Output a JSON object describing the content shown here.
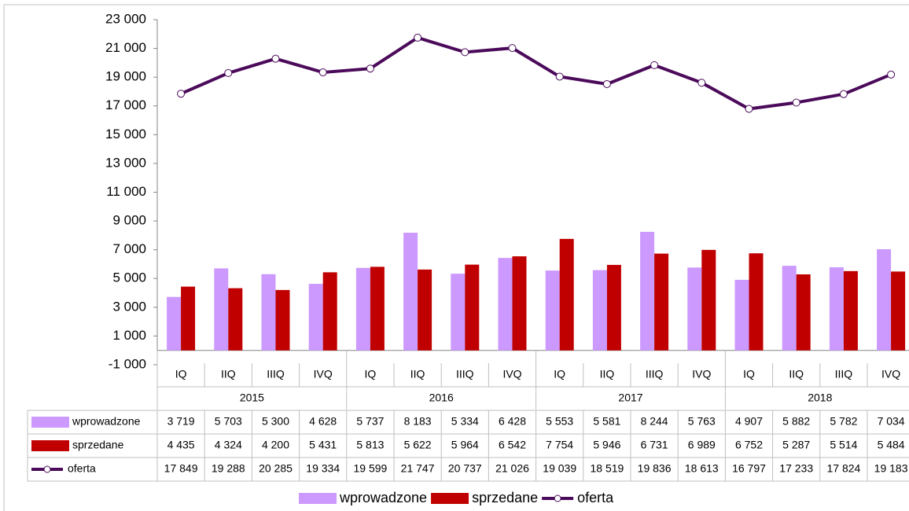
{
  "chart_data": {
    "type": "bar-line",
    "categories": [
      "IQ",
      "IIQ",
      "IIIQ",
      "IVQ",
      "IQ",
      "IIQ",
      "IIIQ",
      "IVQ",
      "IQ",
      "IIQ",
      "IIIQ",
      "IVQ",
      "IQ",
      "IIQ",
      "IIIQ",
      "IVQ"
    ],
    "year_groups": [
      "2015",
      "2016",
      "2017",
      "2018"
    ],
    "series": [
      {
        "name": "wprowadzone",
        "type": "bar",
        "color": "#cc99ff",
        "values": [
          3719,
          5703,
          5300,
          4628,
          5737,
          8183,
          5334,
          6428,
          5553,
          5581,
          8244,
          5763,
          4907,
          5882,
          5782,
          7034
        ],
        "value_labels": [
          "3 719",
          "5 703",
          "5 300",
          "4 628",
          "5 737",
          "8 183",
          "5 334",
          "6 428",
          "5 553",
          "5 581",
          "8 244",
          "5 763",
          "4 907",
          "5 882",
          "5 782",
          "7 034"
        ]
      },
      {
        "name": "sprzedane",
        "type": "bar",
        "color": "#c00000",
        "values": [
          4435,
          4324,
          4200,
          5431,
          5813,
          5622,
          5964,
          6542,
          7754,
          5946,
          6731,
          6989,
          6752,
          5287,
          5514,
          5484
        ],
        "value_labels": [
          "4 435",
          "4 324",
          "4 200",
          "5 431",
          "5 813",
          "5 622",
          "5 964",
          "6 542",
          "7 754",
          "5 946",
          "6 731",
          "6 989",
          "6 752",
          "5 287",
          "5 514",
          "5 484"
        ]
      },
      {
        "name": "oferta",
        "type": "line",
        "color": "#4b0a5a",
        "values": [
          17849,
          19288,
          20285,
          19334,
          19599,
          21747,
          20737,
          21026,
          19039,
          18519,
          19836,
          18613,
          16797,
          17233,
          17824,
          19183
        ],
        "value_labels": [
          "17 849",
          "19 288",
          "20 285",
          "19 334",
          "19 599",
          "21 747",
          "20 737",
          "21 026",
          "19 039",
          "18 519",
          "19 836",
          "18 613",
          "16 797",
          "17 233",
          "17 824",
          "19 183"
        ]
      }
    ],
    "ylim": [
      -1000,
      23000
    ],
    "yticks": [
      {
        "value": -1000,
        "label": "-1 000"
      },
      {
        "value": 1000,
        "label": "1 000"
      },
      {
        "value": 3000,
        "label": "3 000"
      },
      {
        "value": 5000,
        "label": "5 000"
      },
      {
        "value": 7000,
        "label": "7 000"
      },
      {
        "value": 9000,
        "label": "9 000"
      },
      {
        "value": 11000,
        "label": "11 000"
      },
      {
        "value": 13000,
        "label": "13 000"
      },
      {
        "value": 15000,
        "label": "15 000"
      },
      {
        "value": 17000,
        "label": "17 000"
      },
      {
        "value": 19000,
        "label": "19 000"
      },
      {
        "value": 21000,
        "label": "21 000"
      },
      {
        "value": 23000,
        "label": "23 000"
      }
    ],
    "grid": false
  }
}
